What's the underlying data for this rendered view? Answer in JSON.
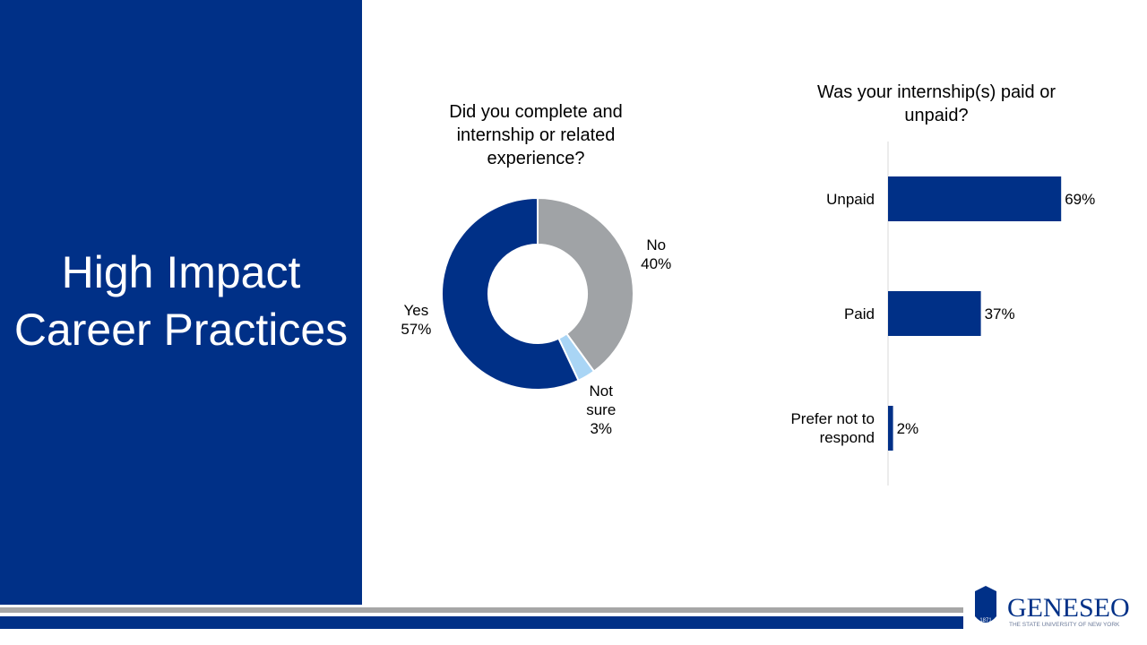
{
  "slide": {
    "title_lines": [
      "High Impact",
      "Career Practices"
    ]
  },
  "logo": {
    "name": "GENESEO",
    "subtitle": "THE STATE UNIVERSITY OF NEW YORK",
    "year": "1871"
  },
  "chart_data": [
    {
      "type": "donut",
      "title": "Did you complete and internship or related experience?",
      "categories": [
        "No",
        "Not sure",
        "Yes"
      ],
      "values": [
        40,
        3,
        57
      ],
      "value_labels": [
        "40%",
        "3%",
        "57%"
      ],
      "colors": [
        "#a0a3a6",
        "#a9d5f5",
        "#003087"
      ]
    },
    {
      "type": "hbar",
      "title": "Was your internship(s) paid or unpaid?",
      "categories": [
        "Unpaid",
        "Paid",
        "Prefer not to respond"
      ],
      "values": [
        69,
        37,
        2
      ],
      "value_labels": [
        "69%",
        "37%",
        "2%"
      ],
      "color": "#003087",
      "xlim": [
        0,
        100
      ]
    }
  ]
}
